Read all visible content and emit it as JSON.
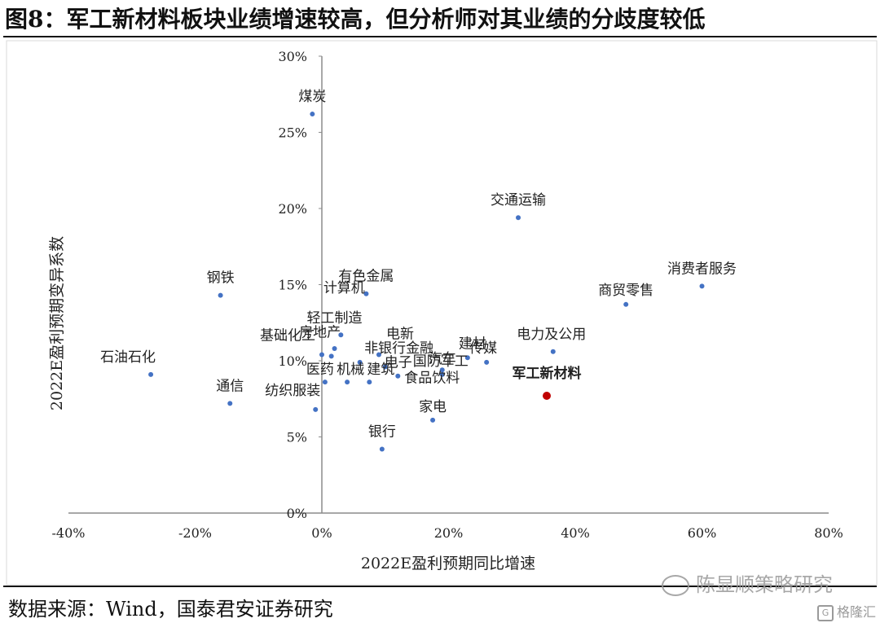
{
  "title": "图8：军工新材料板块业绩增速较高，但分析师对其业绩的分歧度较低",
  "source": "数据来源：Wind，国泰君安证券研究",
  "watermark": {
    "wechat": "陈显顺策略研究",
    "site": "格隆汇"
  },
  "colors": {
    "point": "#4472c4",
    "highlight": "#c00000",
    "axis": "#8c8c8c",
    "frame": "#d9d9d9"
  },
  "chart_data": {
    "type": "scatter",
    "title": "",
    "xlabel": "2022E盈利预期同比增速",
    "ylabel": "2022E盈利预期变异系数",
    "xlim": [
      -0.4,
      0.8
    ],
    "ylim": [
      0,
      0.3
    ],
    "x_ticks": [
      "-40%",
      "-20%",
      "0%",
      "20%",
      "40%",
      "60%",
      "80%"
    ],
    "y_ticks": [
      "0%",
      "5%",
      "10%",
      "15%",
      "20%",
      "25%",
      "30%"
    ],
    "grid": false,
    "points": [
      {
        "name": "煤炭",
        "x": -0.015,
        "y": 0.262
      },
      {
        "name": "交通运输",
        "x": 0.31,
        "y": 0.194
      },
      {
        "name": "消费者服务",
        "x": 0.6,
        "y": 0.149
      },
      {
        "name": "商贸零售",
        "x": 0.48,
        "y": 0.137
      },
      {
        "name": "钢铁",
        "x": -0.16,
        "y": 0.143
      },
      {
        "name": "有色金属",
        "x": 0.07,
        "y": 0.144
      },
      {
        "name": "计算机",
        "x": 0.03,
        "y": 0.117
      },
      {
        "name": "轻工制造",
        "x": 0.02,
        "y": 0.108
      },
      {
        "name": "基础化工",
        "x": 0.0,
        "y": 0.104
      },
      {
        "name": "房地产",
        "x": 0.015,
        "y": 0.103
      },
      {
        "name": "电新",
        "x": 0.09,
        "y": 0.104
      },
      {
        "name": "非银行金融",
        "x": 0.06,
        "y": 0.099
      },
      {
        "name": "电子",
        "x": 0.1,
        "y": 0.096
      },
      {
        "name": "医药",
        "x": 0.005,
        "y": 0.086
      },
      {
        "name": "机械",
        "x": 0.04,
        "y": 0.086
      },
      {
        "name": "建筑",
        "x": 0.075,
        "y": 0.086
      },
      {
        "name": "国防军工",
        "x": 0.19,
        "y": 0.094
      },
      {
        "name": "汽车",
        "x": 0.19,
        "y": 0.091
      },
      {
        "name": "建材",
        "x": 0.23,
        "y": 0.102
      },
      {
        "name": "传媒",
        "x": 0.26,
        "y": 0.099
      },
      {
        "name": "电力及公用",
        "x": 0.365,
        "y": 0.106
      },
      {
        "name": "食品饮料",
        "x": 0.12,
        "y": 0.09
      },
      {
        "name": "石油石化",
        "x": -0.27,
        "y": 0.091
      },
      {
        "name": "通信",
        "x": -0.145,
        "y": 0.072
      },
      {
        "name": "纺织服装",
        "x": -0.01,
        "y": 0.068
      },
      {
        "name": "家电",
        "x": 0.175,
        "y": 0.061
      },
      {
        "name": "银行",
        "x": 0.095,
        "y": 0.042
      },
      {
        "name": "军工新材料",
        "x": 0.355,
        "y": 0.077,
        "highlight": true
      }
    ]
  }
}
